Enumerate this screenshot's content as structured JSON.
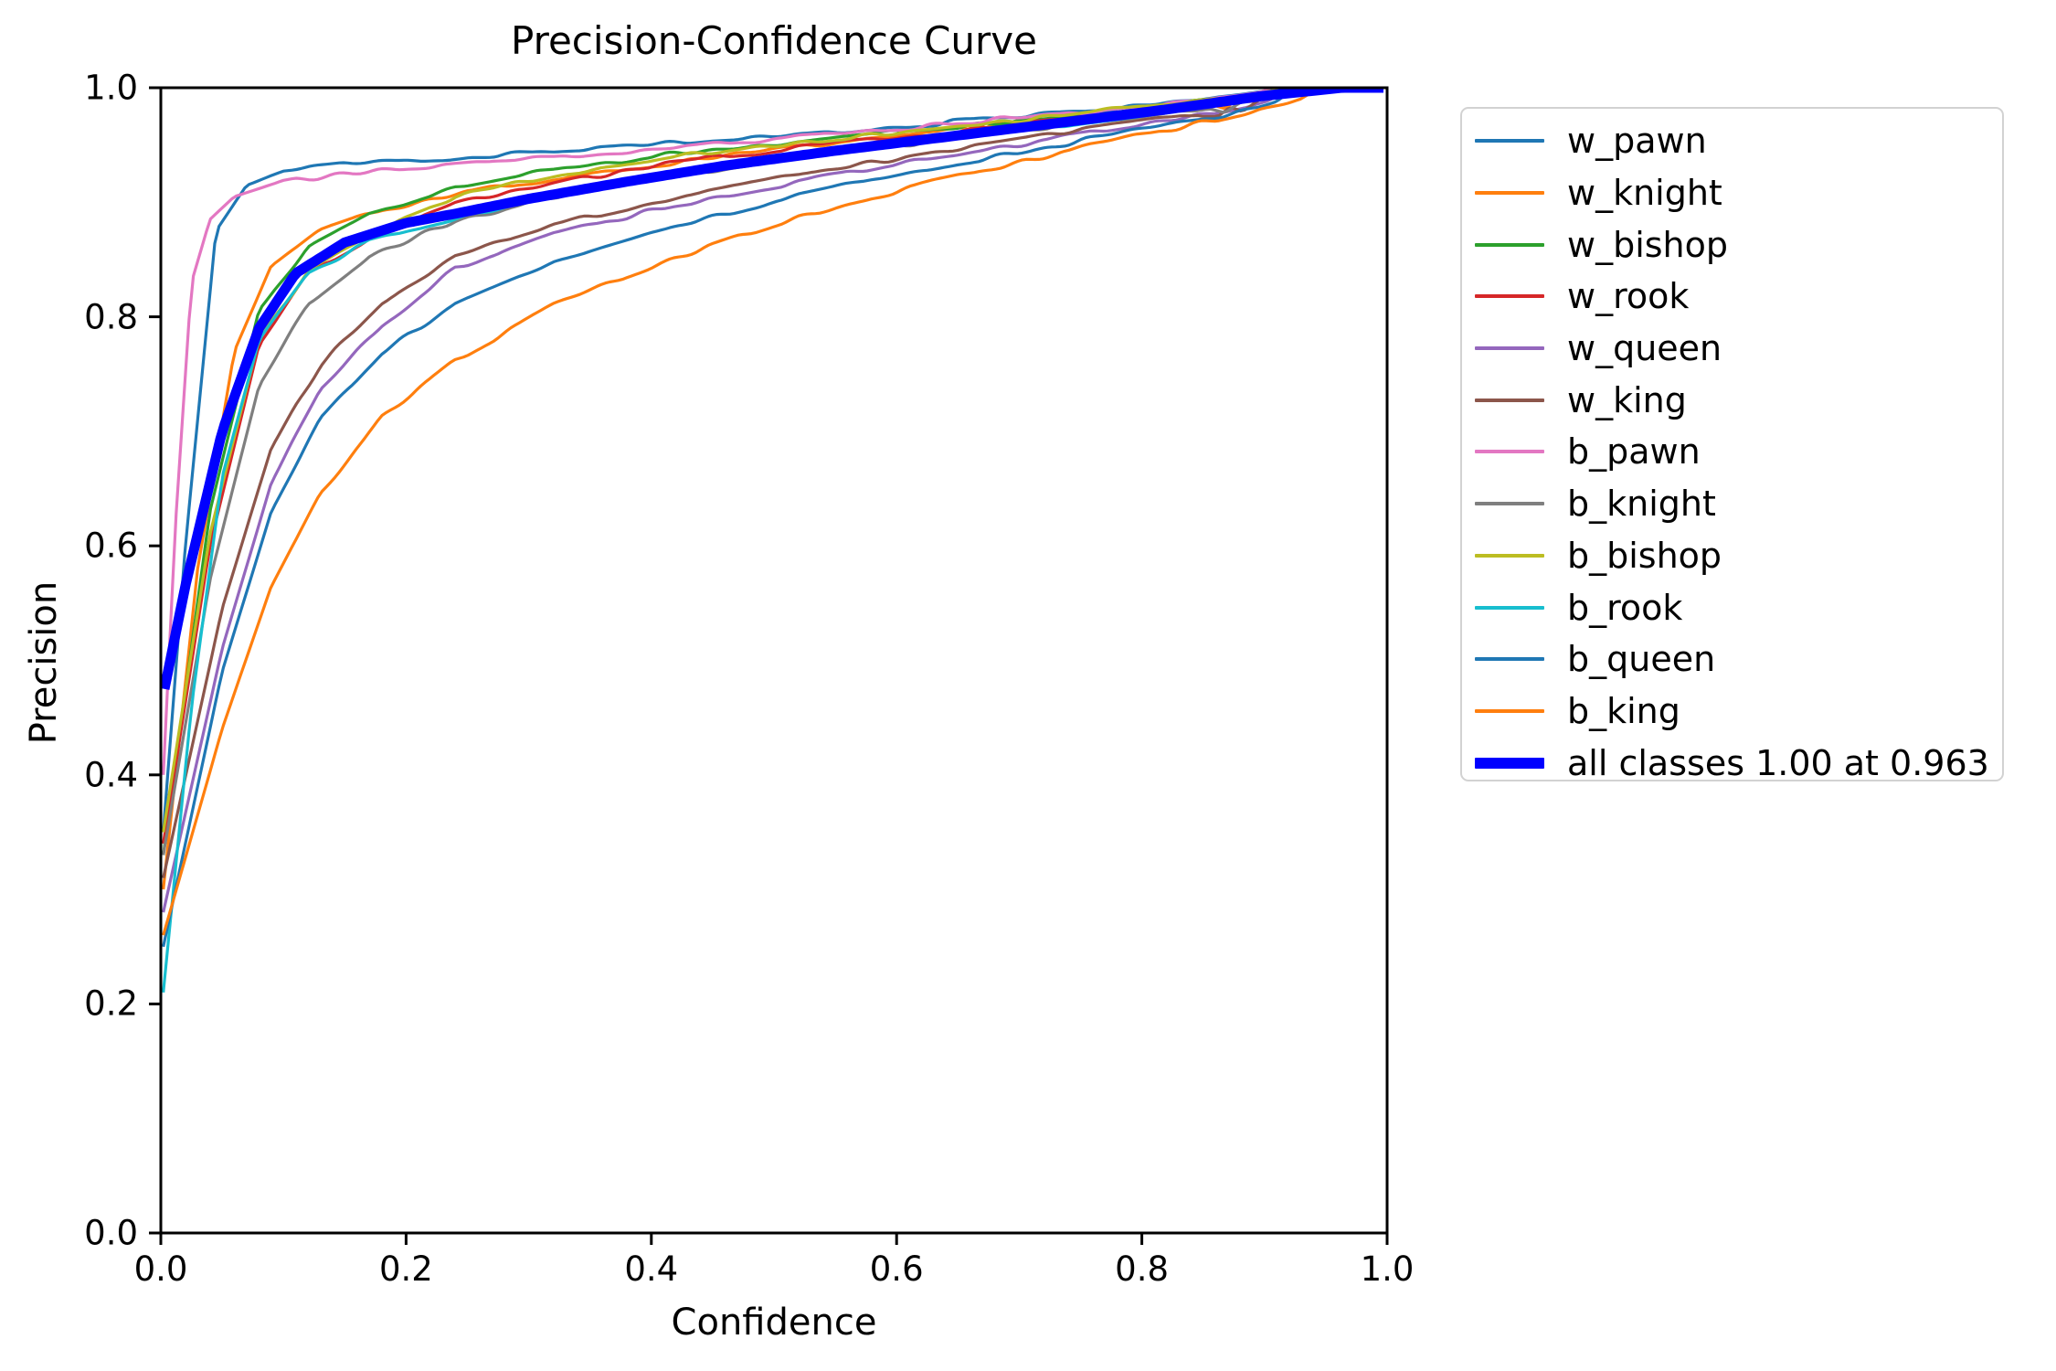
{
  "figure": {
    "background": "#ffffff",
    "spine_color": "#000000",
    "tick_color": "#000000",
    "legend_border_color": "#d2d2d2",
    "all_classes_color": "#0000ff"
  },
  "chart_data": {
    "type": "line",
    "title": "Precision-Confidence Curve",
    "xlabel": "Confidence",
    "ylabel": "Precision",
    "xlim": [
      0.0,
      1.0
    ],
    "ylim": [
      0.0,
      1.0
    ],
    "x_ticks": [
      "0.0",
      "0.2",
      "0.4",
      "0.6",
      "0.8",
      "1.0"
    ],
    "y_ticks": [
      "0.0",
      "0.2",
      "0.4",
      "0.6",
      "0.8",
      "1.0"
    ],
    "grid": false,
    "legend_position": "outside-right",
    "annotation": "all classes reach precision 1.00 at confidence 0.963",
    "series": [
      {
        "name": "w_pawn",
        "label": "w_pawn",
        "color": "#1f77b4",
        "width": 3.2,
        "points": [
          [
            0.002,
            0.35
          ],
          [
            0.02,
            0.6
          ],
          [
            0.045,
            0.875
          ],
          [
            0.07,
            0.915
          ],
          [
            0.1,
            0.927
          ],
          [
            0.15,
            0.933
          ],
          [
            0.22,
            0.937
          ],
          [
            0.3,
            0.944
          ],
          [
            0.4,
            0.951
          ],
          [
            0.5,
            0.958
          ],
          [
            0.6,
            0.966
          ],
          [
            0.7,
            0.975
          ],
          [
            0.78,
            0.982
          ],
          [
            0.84,
            0.989
          ],
          [
            0.88,
            0.994
          ],
          [
            0.905,
            0.998
          ],
          [
            0.915,
            1.0
          ]
        ]
      },
      {
        "name": "w_knight",
        "label": "w_knight",
        "color": "#ff7f0e",
        "width": 3.2,
        "points": [
          [
            0.002,
            0.3
          ],
          [
            0.03,
            0.58
          ],
          [
            0.06,
            0.77
          ],
          [
            0.09,
            0.845
          ],
          [
            0.13,
            0.875
          ],
          [
            0.18,
            0.893
          ],
          [
            0.24,
            0.908
          ],
          [
            0.33,
            0.922
          ],
          [
            0.43,
            0.936
          ],
          [
            0.53,
            0.949
          ],
          [
            0.63,
            0.961
          ],
          [
            0.73,
            0.972
          ],
          [
            0.81,
            0.981
          ],
          [
            0.855,
            0.987
          ],
          [
            0.868,
            0.983
          ],
          [
            0.878,
            0.99
          ],
          [
            0.89,
            0.987
          ],
          [
            0.9,
            0.993
          ],
          [
            0.912,
            1.0
          ]
        ]
      },
      {
        "name": "w_bishop",
        "label": "w_bishop",
        "color": "#2ca02c",
        "width": 3.2,
        "points": [
          [
            0.002,
            0.33
          ],
          [
            0.04,
            0.63
          ],
          [
            0.08,
            0.805
          ],
          [
            0.12,
            0.86
          ],
          [
            0.17,
            0.89
          ],
          [
            0.24,
            0.913
          ],
          [
            0.33,
            0.93
          ],
          [
            0.43,
            0.944
          ],
          [
            0.53,
            0.954
          ],
          [
            0.63,
            0.964
          ],
          [
            0.73,
            0.975
          ],
          [
            0.81,
            0.984
          ],
          [
            0.855,
            0.99
          ],
          [
            0.868,
            0.986
          ],
          [
            0.88,
            0.993
          ],
          [
            0.893,
            0.99
          ],
          [
            0.908,
            1.0
          ]
        ]
      },
      {
        "name": "w_rook",
        "label": "w_rook",
        "color": "#d62728",
        "width": 3.2,
        "points": [
          [
            0.002,
            0.34
          ],
          [
            0.04,
            0.6
          ],
          [
            0.08,
            0.775
          ],
          [
            0.12,
            0.838
          ],
          [
            0.17,
            0.868
          ],
          [
            0.24,
            0.899
          ],
          [
            0.33,
            0.919
          ],
          [
            0.43,
            0.936
          ],
          [
            0.53,
            0.949
          ],
          [
            0.63,
            0.96
          ],
          [
            0.73,
            0.971
          ],
          [
            0.81,
            0.98
          ],
          [
            0.87,
            0.988
          ],
          [
            0.9,
            0.994
          ],
          [
            0.92,
            1.0
          ]
        ]
      },
      {
        "name": "w_queen",
        "label": "w_queen",
        "color": "#9467bd",
        "width": 3.2,
        "points": [
          [
            0.002,
            0.28
          ],
          [
            0.05,
            0.51
          ],
          [
            0.09,
            0.655
          ],
          [
            0.13,
            0.735
          ],
          [
            0.18,
            0.792
          ],
          [
            0.24,
            0.843
          ],
          [
            0.32,
            0.872
          ],
          [
            0.42,
            0.898
          ],
          [
            0.52,
            0.918
          ],
          [
            0.62,
            0.937
          ],
          [
            0.72,
            0.954
          ],
          [
            0.8,
            0.968
          ],
          [
            0.86,
            0.978
          ],
          [
            0.9,
            0.986
          ],
          [
            0.925,
            1.0
          ]
        ]
      },
      {
        "name": "w_king",
        "label": "w_king",
        "color": "#8c564b",
        "width": 3.2,
        "points": [
          [
            0.002,
            0.31
          ],
          [
            0.05,
            0.545
          ],
          [
            0.09,
            0.685
          ],
          [
            0.13,
            0.758
          ],
          [
            0.18,
            0.812
          ],
          [
            0.24,
            0.852
          ],
          [
            0.32,
            0.88
          ],
          [
            0.42,
            0.905
          ],
          [
            0.52,
            0.924
          ],
          [
            0.62,
            0.942
          ],
          [
            0.72,
            0.958
          ],
          [
            0.8,
            0.971
          ],
          [
            0.845,
            0.978
          ],
          [
            0.862,
            0.974
          ],
          [
            0.872,
            0.982
          ],
          [
            0.882,
            0.977
          ],
          [
            0.893,
            0.986
          ],
          [
            0.908,
            1.0
          ]
        ]
      },
      {
        "name": "b_pawn",
        "label": "b_pawn",
        "color": "#e377c2",
        "width": 3.2,
        "points": [
          [
            0.002,
            0.4
          ],
          [
            0.012,
            0.62
          ],
          [
            0.025,
            0.83
          ],
          [
            0.04,
            0.885
          ],
          [
            0.06,
            0.905
          ],
          [
            0.1,
            0.918
          ],
          [
            0.15,
            0.925
          ],
          [
            0.22,
            0.931
          ],
          [
            0.32,
            0.94
          ],
          [
            0.42,
            0.948
          ],
          [
            0.52,
            0.957
          ],
          [
            0.62,
            0.966
          ],
          [
            0.72,
            0.976
          ],
          [
            0.8,
            0.984
          ],
          [
            0.86,
            0.991
          ],
          [
            0.895,
            0.996
          ],
          [
            0.908,
            1.0
          ]
        ]
      },
      {
        "name": "b_knight",
        "label": "b_knight",
        "color": "#7f7f7f",
        "width": 3.2,
        "points": [
          [
            0.002,
            0.33
          ],
          [
            0.04,
            0.57
          ],
          [
            0.08,
            0.74
          ],
          [
            0.12,
            0.812
          ],
          [
            0.17,
            0.852
          ],
          [
            0.24,
            0.884
          ],
          [
            0.33,
            0.906
          ],
          [
            0.43,
            0.925
          ],
          [
            0.53,
            0.94
          ],
          [
            0.63,
            0.953
          ],
          [
            0.73,
            0.966
          ],
          [
            0.81,
            0.976
          ],
          [
            0.855,
            0.982
          ],
          [
            0.868,
            0.978
          ],
          [
            0.88,
            0.986
          ],
          [
            0.9,
            0.991
          ],
          [
            0.915,
            1.0
          ]
        ]
      },
      {
        "name": "b_bishop",
        "label": "b_bishop",
        "color": "#bcbd22",
        "width": 3.2,
        "points": [
          [
            0.002,
            0.35
          ],
          [
            0.04,
            0.61
          ],
          [
            0.08,
            0.78
          ],
          [
            0.12,
            0.84
          ],
          [
            0.17,
            0.872
          ],
          [
            0.24,
            0.905
          ],
          [
            0.33,
            0.925
          ],
          [
            0.43,
            0.942
          ],
          [
            0.53,
            0.954
          ],
          [
            0.63,
            0.964
          ],
          [
            0.73,
            0.975
          ],
          [
            0.81,
            0.985
          ],
          [
            0.87,
            0.991
          ],
          [
            0.9,
            0.996
          ],
          [
            0.917,
            1.0
          ]
        ]
      },
      {
        "name": "b_rook",
        "label": "b_rook",
        "color": "#17becf",
        "width": 3.2,
        "points": [
          [
            0.002,
            0.21
          ],
          [
            0.025,
            0.46
          ],
          [
            0.05,
            0.66
          ],
          [
            0.08,
            0.78
          ],
          [
            0.12,
            0.838
          ],
          [
            0.17,
            0.866
          ],
          [
            0.24,
            0.886
          ],
          [
            0.33,
            0.91
          ],
          [
            0.43,
            0.928
          ],
          [
            0.53,
            0.943
          ],
          [
            0.63,
            0.956
          ],
          [
            0.73,
            0.967
          ],
          [
            0.81,
            0.977
          ],
          [
            0.87,
            0.985
          ],
          [
            0.9,
            0.991
          ],
          [
            0.916,
            1.0
          ]
        ]
      },
      {
        "name": "b_queen",
        "label": "b_queen",
        "color": "#1f77b4",
        "width": 3.2,
        "points": [
          [
            0.002,
            0.25
          ],
          [
            0.05,
            0.49
          ],
          [
            0.09,
            0.63
          ],
          [
            0.13,
            0.71
          ],
          [
            0.18,
            0.768
          ],
          [
            0.24,
            0.812
          ],
          [
            0.32,
            0.848
          ],
          [
            0.42,
            0.88
          ],
          [
            0.52,
            0.906
          ],
          [
            0.62,
            0.928
          ],
          [
            0.72,
            0.948
          ],
          [
            0.8,
            0.963
          ],
          [
            0.86,
            0.974
          ],
          [
            0.895,
            0.982
          ],
          [
            0.91,
            0.987
          ],
          [
            0.925,
            1.0
          ]
        ]
      },
      {
        "name": "b_king",
        "label": "b_king",
        "color": "#ff7f0e",
        "width": 3.2,
        "points": [
          [
            0.002,
            0.26
          ],
          [
            0.05,
            0.44
          ],
          [
            0.09,
            0.565
          ],
          [
            0.13,
            0.645
          ],
          [
            0.18,
            0.712
          ],
          [
            0.24,
            0.762
          ],
          [
            0.32,
            0.81
          ],
          [
            0.42,
            0.852
          ],
          [
            0.52,
            0.886
          ],
          [
            0.62,
            0.915
          ],
          [
            0.72,
            0.94
          ],
          [
            0.8,
            0.959
          ],
          [
            0.86,
            0.972
          ],
          [
            0.9,
            0.982
          ],
          [
            0.93,
            0.99
          ],
          [
            0.945,
            1.0
          ]
        ]
      },
      {
        "name": "all classes",
        "label": "all classes 1.00 at 0.963",
        "color": "#0000ff",
        "width": 11,
        "points": [
          [
            0.003,
            0.475
          ],
          [
            0.02,
            0.565
          ],
          [
            0.05,
            0.7
          ],
          [
            0.08,
            0.79
          ],
          [
            0.11,
            0.838
          ],
          [
            0.15,
            0.865
          ],
          [
            0.2,
            0.882
          ],
          [
            0.24,
            0.89
          ],
          [
            0.3,
            0.903
          ],
          [
            0.38,
            0.918
          ],
          [
            0.46,
            0.932
          ],
          [
            0.55,
            0.945
          ],
          [
            0.64,
            0.957
          ],
          [
            0.73,
            0.969
          ],
          [
            0.82,
            0.981
          ],
          [
            0.9,
            0.993
          ],
          [
            0.963,
            1.0
          ],
          [
            1.0,
            1.0
          ]
        ]
      }
    ]
  }
}
